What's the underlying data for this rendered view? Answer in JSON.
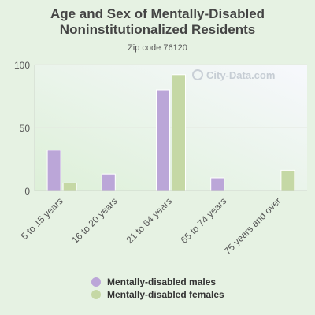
{
  "chart_data": {
    "type": "bar",
    "title": "Age and Sex of Mentally-Disabled\nNoninstitutionalized Residents",
    "subtitle": "Zip code 76120",
    "categories": [
      "5 to 15 years",
      "16 to 20 years",
      "21 to 64 years",
      "65 to 74 years",
      "75 years and over"
    ],
    "series": [
      {
        "name": "Mentally-disabled males",
        "color": "#bba6d8",
        "values": [
          32,
          13,
          80,
          10,
          0
        ]
      },
      {
        "name": "Mentally-disabled females",
        "color": "#c5d8a5",
        "values": [
          6,
          0,
          92,
          0,
          16
        ]
      }
    ],
    "yticks": [
      0,
      50,
      100
    ],
    "ylim": [
      0,
      100
    ],
    "grid": true,
    "legend": "bottom"
  },
  "watermark": "City-Data.com"
}
